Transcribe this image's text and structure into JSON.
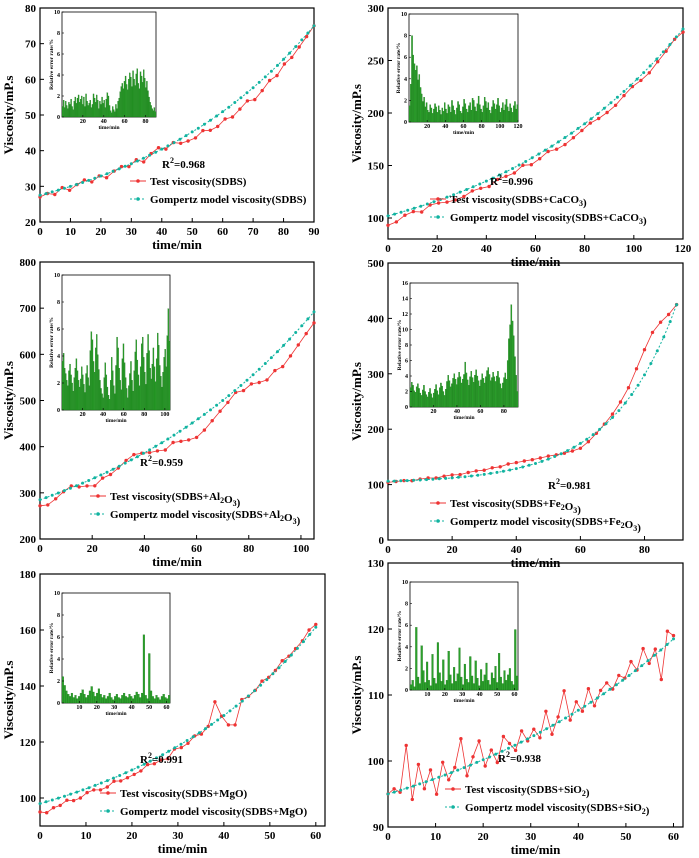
{
  "colors": {
    "test": "#ee3333",
    "model": "#11b3a0",
    "bar": "#2ca02c",
    "bar_edge": "#0f6b0f"
  },
  "chart_data": [
    {
      "type": "line",
      "xlabel": "time/min",
      "ylabel": "Viscosity/mP.s",
      "xlim": [
        0,
        90
      ],
      "ylim": [
        20,
        80
      ],
      "xticks": [
        0,
        10,
        20,
        30,
        40,
        50,
        60,
        70,
        80,
        90
      ],
      "yticks": [
        20,
        30,
        40,
        50,
        60,
        70,
        80
      ],
      "r2_label": "R",
      "r2_text": "=0.968",
      "series": [
        {
          "name": "Test viscosity(SDBS)",
          "kind": "test",
          "x_start": 0,
          "x_end": 90,
          "y_start": 27,
          "y_end": 75,
          "curve": 1.45,
          "noise": [
            0,
            0.4,
            -0.5,
            0.8,
            -0.6,
            0.3,
            0.9,
            -0.4,
            0.5,
            -0.8,
            0.2,
            0.6,
            -0.3,
            0.7,
            -0.9,
            0.4,
            1.0,
            -0.5,
            0.2,
            -1.2,
            -1.8,
            -2.2,
            -1.5,
            -2.8,
            -3.2,
            -2.6,
            -3.6,
            -3.0,
            -2.4,
            -3.8,
            -3.1,
            -2.2,
            -2.8,
            -1.6,
            -1.9,
            -1.2,
            -0.6,
            0
          ]
        },
        {
          "name": "Gompertz model viscosity(SDBS)",
          "kind": "model",
          "x_start": 0,
          "x_end": 90,
          "y_start": 27.5,
          "y_end": 75,
          "curve": 1.5,
          "noise": [
            0
          ]
        }
      ],
      "inset": {
        "xlabel": "time/min",
        "ylabel": "Relative error rate/%",
        "xlim": [
          0,
          90
        ],
        "ylim": [
          0,
          10
        ],
        "xticks": [
          20,
          40,
          60,
          80
        ],
        "yticks": [
          0,
          2,
          4,
          6,
          8,
          10
        ],
        "bars": [
          1,
          1.6,
          0.9,
          1.5,
          1.1,
          0.8,
          1.4,
          1.2,
          1.7,
          1.0,
          0.7,
          1.5,
          1.9,
          1.3,
          1.8,
          2.1,
          1.4,
          1.7,
          2.0,
          1.2,
          1.9,
          1.0,
          2.2,
          1.5,
          1.1,
          1.3,
          1.6,
          0.9,
          1.2,
          2.2,
          1.8,
          1.4,
          2.1,
          1.6,
          0.8,
          1.5,
          1.2,
          1.9,
          1.3,
          1.6,
          0.9,
          1.7,
          2.3,
          2.0,
          1.1,
          0.6,
          0.4,
          1.0,
          0.7,
          0.5,
          1.2,
          0.8,
          1.5,
          1.8,
          2.4,
          2.9,
          3.2,
          2.7,
          3.4,
          3.9,
          3.1,
          2.6,
          3.6,
          4.2,
          3.8,
          2.9,
          4.4,
          3.6,
          3.0,
          4.1,
          4.6,
          3.2,
          2.7,
          4.3,
          3.9,
          3.3,
          4.5,
          3.7,
          2.8,
          3.4,
          2.5,
          1.9,
          1.4,
          1.1,
          0.8,
          0.6,
          0.9,
          0.5
        ]
      }
    },
    {
      "type": "line",
      "xlabel": "time/min",
      "ylabel": "Viscosity/mP.s",
      "xlim": [
        0,
        120
      ],
      "ylim": [
        80,
        300
      ],
      "xticks": [
        0,
        20,
        40,
        60,
        80,
        100,
        120
      ],
      "yticks": [
        100,
        150,
        200,
        250,
        300
      ],
      "r2_label": "R",
      "r2_text": "=0.996",
      "series": [
        {
          "name": "Test viscosity(SDBS+CaCO3)",
          "kind": "test",
          "x_start": 0,
          "x_end": 120,
          "y_start": 97,
          "y_end": 278,
          "curve": 1.5,
          "noise": [
            -4,
            -3,
            1,
            2,
            -1,
            3,
            2,
            0,
            -1,
            1,
            0,
            -2,
            1,
            0,
            -1,
            2,
            -2,
            -1,
            1,
            -2,
            -3,
            -2,
            -1,
            0,
            -2,
            -3,
            -1,
            0,
            -2,
            -3,
            -1,
            0,
            2,
            -1
          ]
        },
        {
          "name": "Gompertz model viscosity(SDBS+CaCO3)",
          "kind": "model",
          "x_start": 0,
          "x_end": 120,
          "y_start": 102,
          "y_end": 280,
          "curve": 1.5,
          "noise": [
            0
          ]
        }
      ],
      "inset": {
        "xlabel": "time/min",
        "ylabel": "Relative error rate/%",
        "xlim": [
          0,
          120
        ],
        "ylim": [
          0,
          10
        ],
        "xticks": [
          20,
          40,
          60,
          80,
          100,
          120
        ],
        "yticks": [
          0,
          2,
          4,
          6,
          8,
          10
        ],
        "bars": [
          1.5,
          3.5,
          8,
          6.2,
          5.4,
          4.8,
          5.2,
          3.9,
          4.4,
          3.2,
          2.6,
          1.9,
          2.3,
          1.4,
          1.8,
          1.1,
          0.9,
          1.6,
          1.3,
          0.8,
          1.2,
          1.7,
          1.4,
          0.9,
          1.5,
          1.1,
          0.7,
          1.3,
          1.0,
          1.8,
          1.2,
          0.8,
          1.6,
          1.4,
          0.9,
          2.0,
          1.5,
          1.1,
          0.7,
          1.3,
          1.9,
          1.6,
          1.0,
          0.8,
          1.4,
          2.1,
          1.7,
          1.2,
          0.9,
          1.5,
          1.8,
          1.1,
          2.2,
          2.0,
          1.4,
          1.0,
          1.7,
          2.4,
          1.6,
          1.2,
          0.9,
          1.5,
          2.3,
          1.9,
          1.3,
          1.8,
          1.1,
          0.8,
          1.4,
          2.0,
          1.7,
          1.2,
          1.6,
          2.2,
          1.5,
          0.9,
          1.3,
          1.8,
          1.1,
          1.6,
          2.1,
          1.4,
          1.0,
          1.7,
          1.3,
          0.9,
          1.5,
          1.9,
          1.2,
          1.6
        ]
      }
    },
    {
      "type": "line",
      "xlabel": "time/min",
      "ylabel": "Viscosity/mP.s",
      "xlim": [
        0,
        105
      ],
      "ylim": [
        200,
        800
      ],
      "xticks": [
        0,
        20,
        40,
        60,
        80,
        100
      ],
      "yticks": [
        200,
        300,
        400,
        500,
        600,
        700,
        800
      ],
      "r2_label": "R",
      "r2_text": "=0.959",
      "series": [
        {
          "name": "Test viscosity(SDBS+Al2O3)",
          "kind": "test",
          "x_start": 0,
          "x_end": 105,
          "y_start": 272,
          "y_end": 668,
          "curve": 1.2,
          "noise": [
            0,
            -4,
            3,
            12,
            18,
            9,
            4,
            -3,
            6,
            12,
            20,
            24,
            18,
            10,
            4,
            -4,
            2,
            -6,
            -14,
            -20,
            -16,
            -8,
            0,
            6,
            14,
            4,
            -8,
            -18,
            -14,
            -22,
            -16,
            -10,
            -4,
            0
          ]
        },
        {
          "name": "Gompertz model viscosity(SDBS+Al2O3)",
          "kind": "model",
          "x_start": 0,
          "x_end": 105,
          "y_start": 285,
          "y_end": 692,
          "curve": 1.2,
          "noise": [
            0
          ]
        }
      ],
      "inset": {
        "xlabel": "time/min",
        "ylabel": "Relative error rate/%",
        "xlim": [
          0,
          105
        ],
        "ylim": [
          0,
          10
        ],
        "xticks": [
          20,
          40,
          60,
          80,
          100
        ],
        "yticks": [
          0,
          2,
          4,
          6,
          8,
          10
        ],
        "bars": [
          3.6,
          4.2,
          3.1,
          2.7,
          2.2,
          1.8,
          2.9,
          3.4,
          2.6,
          2.0,
          1.4,
          2.4,
          3.1,
          3.8,
          2.9,
          2.2,
          1.7,
          2.3,
          3.2,
          2.6,
          1.9,
          1.3,
          2.7,
          3.3,
          2.4,
          1.8,
          4.4,
          5.8,
          5.2,
          3.6,
          2.8,
          4.6,
          5.6,
          4.1,
          3.0,
          2.2,
          1.6,
          1.2,
          0.9,
          2.4,
          3.5,
          2.6,
          1.7,
          1.1,
          0.8,
          2.2,
          3.9,
          2.9,
          1.8,
          1.2,
          3.3,
          5.4,
          4.6,
          3.1,
          2.2,
          1.5,
          3.8,
          4.9,
          3.5,
          2.4,
          1.6,
          0.9,
          1.8,
          2.7,
          3.6,
          2.2,
          1.4,
          2.9,
          4.3,
          5.2,
          3.7,
          2.6,
          1.8,
          3.2,
          4.9,
          5.4,
          3.9,
          2.8,
          1.9,
          4.2,
          5.6,
          4.4,
          3.1,
          2.3,
          3.4,
          4.6,
          3.2,
          2.1,
          3.8,
          5.7,
          4.8,
          3.3,
          2.5,
          1.7,
          2.8,
          3.9,
          4.5,
          3.2,
          5.5,
          7.5,
          5.1
        ]
      }
    },
    {
      "type": "line",
      "xlabel": "time/min",
      "ylabel": "Viscosity/mP.s",
      "xlim": [
        0,
        92
      ],
      "ylim": [
        0,
        500
      ],
      "xticks": [
        0,
        20,
        40,
        60,
        80
      ],
      "yticks": [
        0,
        100,
        200,
        300,
        400,
        500
      ],
      "r2_label": "R",
      "r2_text": "=0.981",
      "series": [
        {
          "name": "Test viscosity(SDBS+Fe2O3)",
          "kind": "test",
          "x_start": 0,
          "x_end": 90,
          "y_start": 104,
          "y_end": 425,
          "curve": 4.2,
          "noise": [
            0,
            1,
            2,
            1,
            3,
            4,
            3,
            5,
            6,
            5,
            7,
            8,
            7,
            9,
            8,
            10,
            9,
            8,
            6,
            4,
            2,
            -2,
            -6,
            -10,
            -14,
            -12,
            -8,
            -4,
            0,
            6,
            14,
            28,
            40,
            46,
            36,
            18,
            0
          ]
        },
        {
          "name": "Gompertz model viscosity(SDBS+Fe2O3)",
          "kind": "model",
          "x_start": 0,
          "x_end": 90,
          "y_start": 106,
          "y_end": 425,
          "curve": 4.5,
          "noise": [
            0
          ]
        }
      ],
      "inset": {
        "xlabel": "time/min",
        "ylabel": "Relative error rate/%",
        "xlim": [
          0,
          92
        ],
        "ylim": [
          0,
          16
        ],
        "xticks": [
          20,
          40,
          60,
          80
        ],
        "yticks": [
          0,
          2,
          4,
          6,
          8,
          10,
          12,
          14,
          16
        ],
        "bars": [
          2.5,
          3.2,
          2.8,
          2.1,
          1.9,
          2.6,
          3.0,
          2.4,
          1.8,
          1.5,
          2.2,
          2.8,
          2.0,
          1.6,
          1.3,
          1.9,
          2.4,
          1.7,
          1.2,
          1.8,
          2.3,
          2.9,
          2.1,
          1.6,
          2.5,
          3.1,
          2.7,
          2.0,
          1.5,
          2.3,
          3.3,
          4.1,
          3.4,
          2.6,
          3.0,
          3.7,
          4.3,
          3.6,
          2.9,
          3.8,
          4.5,
          3.9,
          3.1,
          3.6,
          4.2,
          5.8,
          4.4,
          3.5,
          2.8,
          3.9,
          4.6,
          3.8,
          3.2,
          4.1,
          4.8,
          4.0,
          3.4,
          2.7,
          3.5,
          4.3,
          3.7,
          3.1,
          3.9,
          4.7,
          5.1,
          4.2,
          3.4,
          3.8,
          4.5,
          3.9,
          3.3,
          4.0,
          4.6,
          3.8,
          3.0,
          2.4,
          3.1,
          3.8,
          4.4,
          3.6,
          6.0,
          8.8,
          10.6,
          13.2,
          11.1,
          9.2,
          6.5,
          4.1,
          2.0
        ]
      }
    },
    {
      "type": "line",
      "xlabel": "time/min",
      "ylabel": "Viscosity/mP.s",
      "xlim": [
        0,
        62
      ],
      "ylim": [
        90,
        180
      ],
      "xticks": [
        0,
        10,
        20,
        30,
        40,
        50,
        60
      ],
      "yticks": [
        100,
        120,
        140,
        160,
        180
      ],
      "r2_label": "R",
      "r2_text": "=0.991",
      "series": [
        {
          "name": "Test viscosity(SDBS+MgO)",
          "kind": "test",
          "x_start": 0,
          "x_end": 60,
          "y_start": 95,
          "y_end": 162,
          "curve": 1.4,
          "noise": [
            0,
            -1,
            0,
            0,
            1,
            0,
            0,
            1,
            1,
            0,
            0,
            1,
            0,
            0,
            0,
            0,
            1,
            0,
            0,
            -1,
            1,
            0,
            0,
            1,
            0,
            1,
            8,
            1,
            -4,
            -6,
            1,
            0,
            0,
            1,
            0,
            0,
            1,
            0,
            0,
            0,
            1,
            0
          ]
        },
        {
          "name": "Gompertz model viscosity(SDBS+MgO)",
          "kind": "model",
          "x_start": 0,
          "x_end": 60,
          "y_start": 98,
          "y_end": 161,
          "curve": 1.45,
          "noise": [
            0
          ]
        }
      ],
      "inset": {
        "xlabel": "time/min",
        "ylabel": "Relative error rate/%",
        "xlim": [
          0,
          62
        ],
        "ylim": [
          0,
          10
        ],
        "xticks": [
          10,
          20,
          30,
          40,
          50,
          60
        ],
        "yticks": [
          0,
          2,
          4,
          6,
          8,
          10
        ],
        "bars": [
          2.4,
          1.6,
          1.1,
          0.8,
          0.6,
          0.9,
          0.5,
          0.7,
          0.4,
          0.6,
          0.9,
          1.2,
          0.8,
          0.5,
          0.7,
          1.1,
          1.5,
          1.0,
          0.6,
          0.9,
          1.3,
          0.8,
          0.5,
          0.7,
          0.4,
          0.6,
          0.9,
          0.5,
          0.3,
          0.6,
          0.8,
          0.5,
          0.4,
          0.7,
          0.9,
          0.6,
          0.5,
          0.8,
          0.6,
          0.4,
          0.7,
          1.0,
          0.8,
          0.5,
          0.9,
          6.2,
          0.7,
          0.4,
          4.5,
          1.1,
          0.6,
          0.4,
          0.7,
          0.5,
          0.3,
          0.6,
          0.8,
          0.5,
          0.4,
          0.7
        ]
      }
    },
    {
      "type": "line",
      "xlabel": "time/min",
      "ylabel": "Viscosity/mP.s",
      "xlim": [
        0,
        62
      ],
      "ylim": [
        90,
        130
      ],
      "xticks": [
        0,
        10,
        20,
        30,
        40,
        50,
        60
      ],
      "yticks": [
        90,
        100,
        110,
        120,
        130
      ],
      "r2_label": "R",
      "r2_text": "=0.938",
      "series": [
        {
          "name": "Test viscosity(SDBS+SiO2)",
          "kind": "test",
          "x_start": 0,
          "x_end": 60,
          "y_start": 95,
          "y_end": 119,
          "curve": 1.1,
          "noise": [
            0,
            0.5,
            -0.3,
            6.5,
            -2,
            3,
            -1,
            1.5,
            -2.5,
            2,
            -1,
            0.5,
            4.5,
            -1.5,
            1,
            3,
            -1.2,
            0.8,
            -1.5,
            2,
            0.5,
            -1,
            1.5,
            -0.5,
            0.8,
            -1,
            2.5,
            -1.5,
            0.6,
            4,
            -1,
            1.2,
            -0.8,
            2,
            -1.2,
            0.5,
            1,
            -0.6,
            0.8,
            -0.3,
            1.5,
            -0.5,
            2,
            -1,
            0.4,
            -5,
            1.5,
            0
          ]
        },
        {
          "name": "Gompertz model viscosity(SDBS+SiO2)",
          "kind": "model",
          "x_start": 0,
          "x_end": 60,
          "y_start": 95,
          "y_end": 118.5,
          "curve": 1.1,
          "noise": [
            0
          ]
        }
      ],
      "inset": {
        "xlabel": "time/min",
        "ylabel": "Relative error rate/%",
        "xlim": [
          0,
          62
        ],
        "ylim": [
          0,
          10
        ],
        "xticks": [
          10,
          20,
          30,
          40,
          50,
          60
        ],
        "yticks": [
          0,
          2,
          4,
          6,
          8,
          10
        ],
        "bars": [
          0.5,
          0.9,
          0.3,
          5.8,
          1.2,
          0.6,
          4.1,
          1.8,
          0.7,
          2.6,
          0.9,
          0.4,
          3.3,
          1.1,
          0.6,
          4.4,
          1.6,
          0.8,
          2.8,
          0.5,
          0.9,
          3.6,
          1.4,
          0.6,
          2.1,
          0.8,
          1.5,
          3.9,
          1.2,
          0.5,
          2.4,
          1.0,
          0.7,
          3.1,
          1.3,
          0.6,
          2.7,
          1.1,
          0.4,
          1.9,
          0.8,
          1.4,
          2.5,
          0.9,
          0.5,
          1.6,
          1.1,
          2.2,
          0.7,
          3.4,
          1.2,
          0.6,
          1.8,
          0.9,
          1.4,
          2.0,
          0.8,
          0.5,
          5.6,
          1.3
        ]
      }
    }
  ]
}
